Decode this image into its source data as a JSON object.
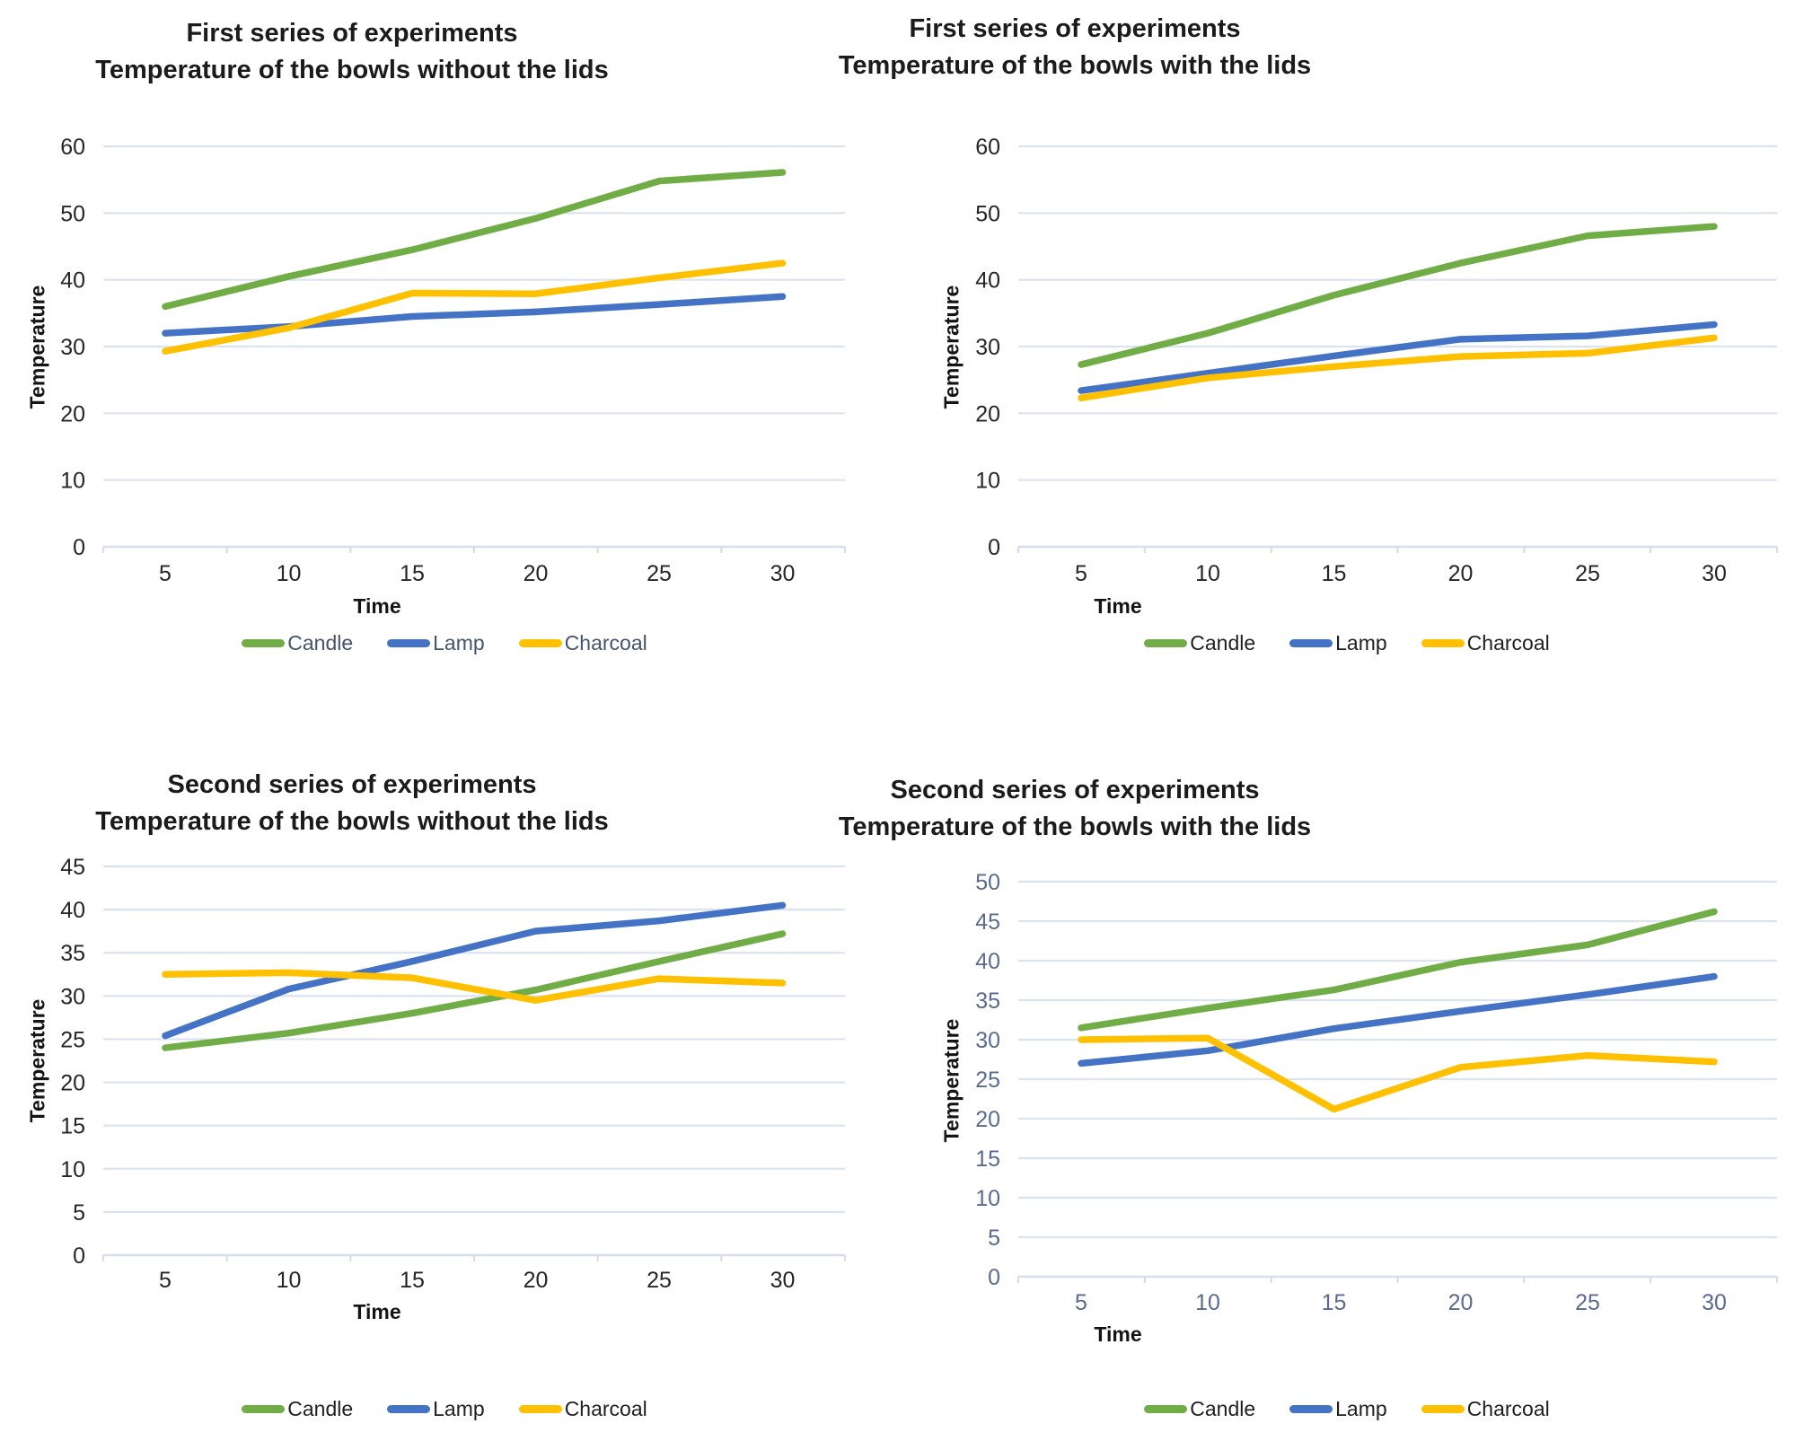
{
  "page_title": "Temperature experiment charts",
  "chart_data": [
    {
      "type": "line",
      "title": "First series of experiments",
      "subtitle": "Temperature of the bowls without the lids",
      "xlabel": "Time",
      "ylabel": "Temperature",
      "x": [
        5,
        10,
        15,
        20,
        25,
        30
      ],
      "y_ticks": [
        0,
        10,
        20,
        30,
        40,
        50,
        60
      ],
      "ylim": [
        0,
        60
      ],
      "grid": true,
      "legend_position": "bottom",
      "tick_color": "#262626",
      "legend_text_color": "#44546A",
      "series": [
        {
          "name": "Candle",
          "color": "#70AD47",
          "values": [
            36,
            40.5,
            44.5,
            49.2,
            54.8,
            56.1
          ]
        },
        {
          "name": "Lamp",
          "color": "#4472C4",
          "values": [
            32,
            33,
            34.5,
            35.2,
            36.3,
            37.5
          ]
        },
        {
          "name": "Charcoal",
          "color": "#FFC000",
          "values": [
            29.3,
            32.8,
            38,
            37.9,
            40.3,
            42.5
          ]
        }
      ]
    },
    {
      "type": "line",
      "title": "First series of experiments",
      "subtitle": "Temperature of the bowls with the lids",
      "xlabel": "Time",
      "ylabel": "Temperature",
      "x": [
        5,
        10,
        15,
        20,
        25,
        30
      ],
      "y_ticks": [
        0,
        10,
        20,
        30,
        40,
        50,
        60
      ],
      "ylim": [
        0,
        60
      ],
      "grid": true,
      "legend_position": "bottom",
      "tick_color": "#262626",
      "legend_text_color": "#1f1f1f",
      "series": [
        {
          "name": "Candle",
          "color": "#70AD47",
          "values": [
            27.3,
            32,
            37.7,
            42.5,
            46.6,
            48
          ]
        },
        {
          "name": "Lamp",
          "color": "#4472C4",
          "values": [
            23.4,
            26,
            28.6,
            31.1,
            31.6,
            33.3
          ]
        },
        {
          "name": "Charcoal",
          "color": "#FFC000",
          "values": [
            22.3,
            25.3,
            27,
            28.5,
            29,
            31.3
          ]
        }
      ]
    },
    {
      "type": "line",
      "title": "Second series of experiments",
      "subtitle": "Temperature of the bowls without the lids",
      "xlabel": "Time",
      "ylabel": "Temperature",
      "x": [
        5,
        10,
        15,
        20,
        25,
        30
      ],
      "y_ticks": [
        0,
        5,
        10,
        15,
        20,
        25,
        30,
        35,
        40,
        45
      ],
      "ylim": [
        0,
        45
      ],
      "grid": true,
      "legend_position": "bottom",
      "tick_color": "#262626",
      "legend_text_color": "#1f1f1f",
      "series": [
        {
          "name": "Candle",
          "color": "#70AD47",
          "values": [
            24,
            25.7,
            28,
            30.7,
            34,
            37.2
          ]
        },
        {
          "name": "Lamp",
          "color": "#4472C4",
          "values": [
            25.4,
            30.8,
            34,
            37.5,
            38.7,
            40.5
          ]
        },
        {
          "name": "Charcoal",
          "color": "#FFC000",
          "values": [
            32.5,
            32.7,
            32.1,
            29.5,
            32,
            31.5
          ]
        }
      ]
    },
    {
      "type": "line",
      "title": "Second series of experiments",
      "subtitle": "Temperature of the bowls with the lids",
      "xlabel": "Time",
      "ylabel": "Temperature",
      "x": [
        5,
        10,
        15,
        20,
        25,
        30
      ],
      "y_ticks": [
        0,
        5,
        10,
        15,
        20,
        25,
        30,
        35,
        40,
        45,
        50
      ],
      "ylim": [
        0,
        50
      ],
      "grid": true,
      "legend_position": "bottom",
      "tick_color": "#5A6B8F",
      "legend_text_color": "#1f1f1f",
      "series": [
        {
          "name": "Candle",
          "color": "#70AD47",
          "values": [
            31.5,
            34,
            36.3,
            39.8,
            42,
            46.2
          ]
        },
        {
          "name": "Lamp",
          "color": "#4472C4",
          "values": [
            27,
            28.6,
            31.4,
            33.6,
            35.7,
            38
          ]
        },
        {
          "name": "Charcoal",
          "color": "#FFC000",
          "values": [
            30,
            30.2,
            21.2,
            26.5,
            28,
            27.2
          ]
        }
      ]
    }
  ]
}
